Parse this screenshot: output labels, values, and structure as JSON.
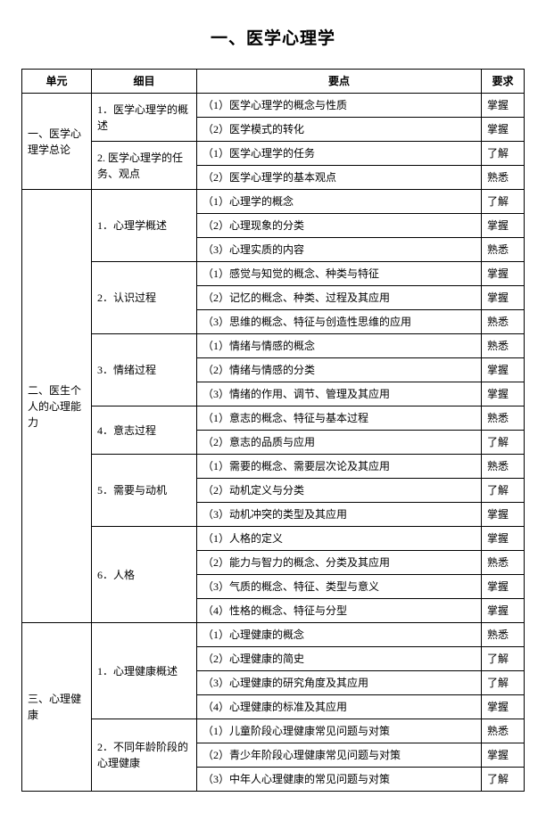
{
  "title": "一、医学心理学",
  "headers": {
    "unit": "单元",
    "item": "细目",
    "point": "要点",
    "requirement": "要求"
  },
  "units": [
    {
      "name": "一、医学心理学总论",
      "items": [
        {
          "name": "1．医学心理学的概述",
          "points": [
            {
              "text": "（1）医学心理学的概念与性质",
              "requirement": "掌握"
            },
            {
              "text": "（2）医学模式的转化",
              "requirement": "掌握"
            }
          ]
        },
        {
          "name": "2. 医学心理学的任务、观点",
          "points": [
            {
              "text": "（1）医学心理学的任务",
              "requirement": "了解"
            },
            {
              "text": "（2）医学心理学的基本观点",
              "requirement": "熟悉"
            }
          ]
        }
      ]
    },
    {
      "name": "二、医生个人的心理能力",
      "items": [
        {
          "name": "1．心理学概述",
          "points": [
            {
              "text": "（1）心理学的概念",
              "requirement": "了解"
            },
            {
              "text": "（2）心理现象的分类",
              "requirement": "掌握"
            },
            {
              "text": "（3）心理实质的内容",
              "requirement": "熟悉"
            }
          ]
        },
        {
          "name": "2．认识过程",
          "points": [
            {
              "text": "（1）感觉与知觉的概念、种类与特征",
              "requirement": "掌握"
            },
            {
              "text": "（2）记忆的概念、种类、过程及其应用",
              "requirement": "掌握"
            },
            {
              "text": "（3）思维的概念、特征与创造性思维的应用",
              "requirement": "熟悉"
            }
          ]
        },
        {
          "name": "3．情绪过程",
          "points": [
            {
              "text": "（1）情绪与情感的概念",
              "requirement": "熟悉"
            },
            {
              "text": "（2）情绪与情感的分类",
              "requirement": "掌握"
            },
            {
              "text": "（3）情绪的作用、调节、管理及其应用",
              "requirement": "掌握"
            }
          ]
        },
        {
          "name": "4．意志过程",
          "points": [
            {
              "text": "（1）意志的概念、特征与基本过程",
              "requirement": "熟悉"
            },
            {
              "text": "（2）意志的品质与应用",
              "requirement": "了解"
            }
          ]
        },
        {
          "name": "5．需要与动机",
          "points": [
            {
              "text": "（1）需要的概念、需要层次论及其应用",
              "requirement": "熟悉"
            },
            {
              "text": "（2）动机定义与分类",
              "requirement": "了解"
            },
            {
              "text": "（3）动机冲突的类型及其应用",
              "requirement": "掌握"
            }
          ]
        },
        {
          "name": "6．人格",
          "points": [
            {
              "text": "（1）人格的定义",
              "requirement": "掌握"
            },
            {
              "text": "（2）能力与智力的概念、分类及其应用",
              "requirement": "熟悉"
            },
            {
              "text": "（3）气质的概念、特征、类型与意义",
              "requirement": "掌握"
            },
            {
              "text": "（4）性格的概念、特征与分型",
              "requirement": "掌握"
            }
          ]
        }
      ]
    },
    {
      "name": "三、心理健康",
      "items": [
        {
          "name": "1．心理健康概述",
          "points": [
            {
              "text": "（1）心理健康的概念",
              "requirement": "熟悉"
            },
            {
              "text": "（2）心理健康的简史",
              "requirement": "了解"
            },
            {
              "text": "（3）心理健康的研究角度及其应用",
              "requirement": "了解"
            },
            {
              "text": "（4）心理健康的标准及其应用",
              "requirement": "掌握"
            }
          ]
        },
        {
          "name": "2．不同年龄阶段的心理健康",
          "points": [
            {
              "text": "（1）儿童阶段心理健康常见问题与对策",
              "requirement": "熟悉"
            },
            {
              "text": "（2）青少年阶段心理健康常见问题与对策",
              "requirement": "掌握"
            },
            {
              "text": "（3）中年人心理健康的常见问题与对策",
              "requirement": "了解"
            }
          ]
        }
      ]
    }
  ]
}
